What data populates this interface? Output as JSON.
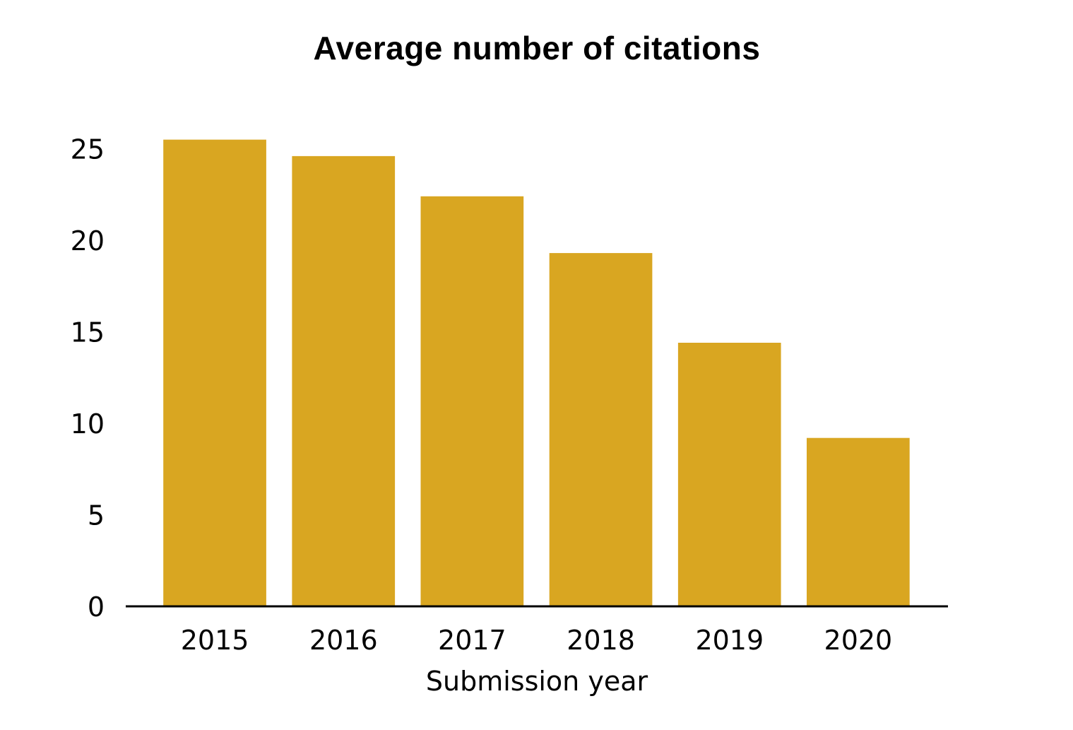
{
  "chart_data": {
    "type": "bar",
    "title": "Average number of citations",
    "xlabel": "Submission year",
    "ylabel": "",
    "categories": [
      "2015",
      "2016",
      "2017",
      "2018",
      "2019",
      "2020"
    ],
    "values": [
      25.5,
      24.6,
      22.4,
      19.3,
      14.4,
      9.2
    ],
    "ylim": [
      0,
      26.5
    ],
    "yticks": [
      0,
      5,
      10,
      15,
      20,
      25
    ],
    "grid": false,
    "legend": "none",
    "bar_color": "#D9A621",
    "axis_color": "#000000"
  }
}
